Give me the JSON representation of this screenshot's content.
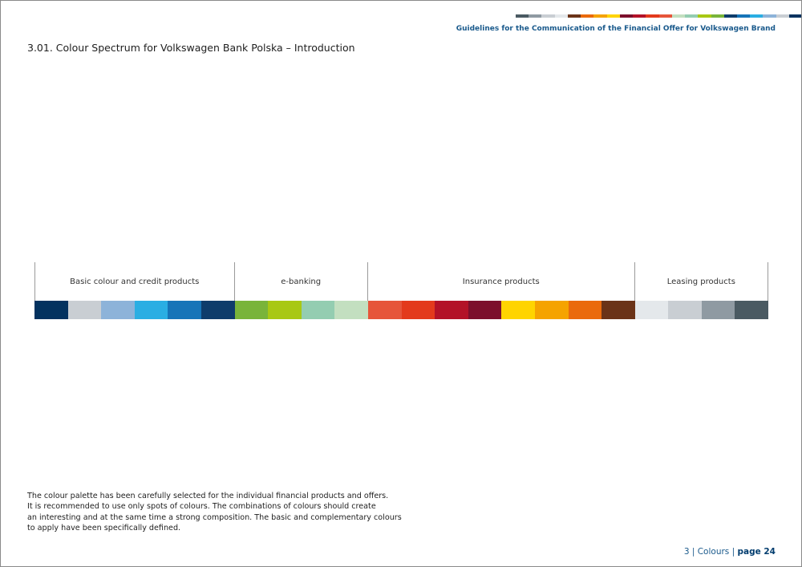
{
  "header": {
    "title": "Guidelines for the Communication of the Financial Offer for Volkswagen Brand",
    "stripe_colors": [
      "#4a5a62",
      "#8f9aa2",
      "#c9ced3",
      "#e4e8eb",
      "#6b3318",
      "#ea6a0c",
      "#f5a300",
      "#ffd400",
      "#7c0f2c",
      "#b31228",
      "#e33a1c",
      "#e6553a",
      "#c3dfc0",
      "#94cdb1",
      "#a8c814",
      "#79b43a",
      "#0e3c6b",
      "#1674b8",
      "#2aaee3",
      "#8db3d9",
      "#c9ced3",
      "#03325f"
    ]
  },
  "page_title": "3.01. Colour Spectrum for Volkswagen Bank Polska – Introduction",
  "spectrum": {
    "groups": [
      {
        "label": "Basic colour and credit products",
        "colors": [
          "#03325f",
          "#c9ced3",
          "#8db3d9",
          "#2aaee3",
          "#1674b8",
          "#0e3c6b"
        ]
      },
      {
        "label": "e-banking",
        "colors": [
          "#79b43a",
          "#a8c814",
          "#94cdb1",
          "#c3dfc0"
        ]
      },
      {
        "label": "Insurance products",
        "colors": [
          "#e6553a",
          "#e33a1c",
          "#b31228",
          "#7c0f2c",
          "#ffd400",
          "#f5a300",
          "#ea6a0c",
          "#6b3318"
        ]
      },
      {
        "label": "Leasing products",
        "colors": [
          "#e4e8eb",
          "#c9ced3",
          "#8f9aa2",
          "#4a5a62"
        ]
      }
    ]
  },
  "body_text": [
    "The colour palette has been carefully selected for the individual financial products and offers.",
    "It is recommended to use only spots of colours. The combinations of colours should create",
    "an interesting and at the same time a strong composition. The basic and complementary colours",
    "to apply have been specifically defined."
  ],
  "footer": {
    "section": "3 | Colours |",
    "page": "page 24"
  }
}
